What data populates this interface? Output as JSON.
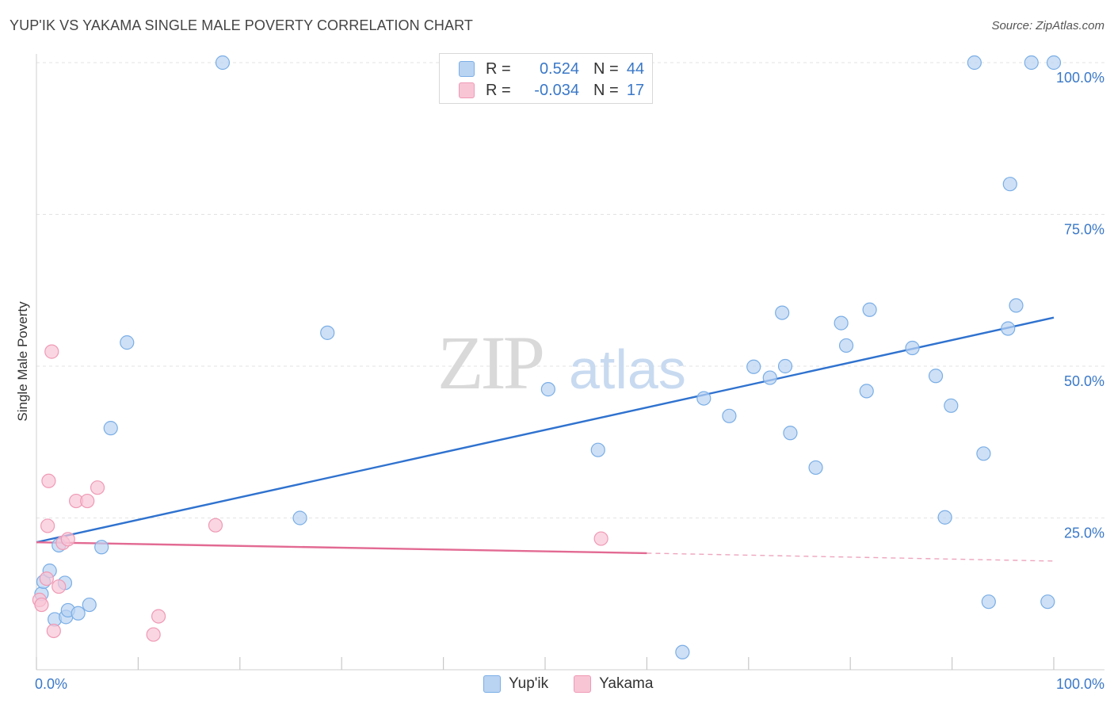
{
  "title": "YUP'IK VS YAKAMA SINGLE MALE POVERTY CORRELATION CHART",
  "source": "Source: ZipAtlas.com",
  "watermark": {
    "zip": "ZIP",
    "atlas": "atlas"
  },
  "legend": {
    "rows": [
      {
        "r_label": "R =",
        "r_value": "0.524",
        "n_label": "N =",
        "n_value": "44"
      },
      {
        "r_label": "R =",
        "r_value": "-0.034",
        "n_label": "N =",
        "n_value": "17"
      }
    ]
  },
  "colors": {
    "yupik_fill": "#b9d3f2",
    "yupik_stroke": "#7aaee6",
    "yupik_line": "#2f72cf",
    "yakama_fill": "#f8c5d5",
    "yakama_stroke": "#ef9ab5",
    "yakama_line": "#e26a93",
    "tick_label": "#3a78c8",
    "grid": "#e3e3e3"
  },
  "chart_data": {
    "type": "scatter",
    "title": "YUP'IK VS YAKAMA SINGLE MALE POVERTY CORRELATION CHART",
    "xlabel": "",
    "ylabel": "Single Male Poverty",
    "xlim": [
      0,
      100
    ],
    "ylim": [
      0,
      100
    ],
    "x_tick_labels": [
      "0.0%",
      "100.0%"
    ],
    "y_ticks": [
      25,
      50,
      75,
      100
    ],
    "y_tick_labels": [
      "25.0%",
      "50.0%",
      "75.0%",
      "100.0%"
    ],
    "series": [
      {
        "name": "Yup'ik",
        "r": 0.524,
        "n": 44,
        "trend": {
          "x": [
            0,
            100
          ],
          "y": [
            21,
            58
          ]
        },
        "points": [
          [
            0.5,
            12.5
          ],
          [
            0.7,
            14.5
          ],
          [
            1.3,
            16.3
          ],
          [
            1.8,
            8.3
          ],
          [
            2.2,
            20.5
          ],
          [
            2.8,
            14.3
          ],
          [
            2.9,
            8.7
          ],
          [
            3.1,
            9.8
          ],
          [
            4.1,
            9.3
          ],
          [
            5.2,
            10.7
          ],
          [
            6.4,
            20.2
          ],
          [
            7.3,
            39.8
          ],
          [
            8.9,
            53.9
          ],
          [
            18.3,
            100
          ],
          [
            25.9,
            25
          ],
          [
            28.6,
            55.5
          ],
          [
            50.3,
            46.2
          ],
          [
            55.2,
            36.2
          ],
          [
            63.5,
            2.9
          ],
          [
            65.6,
            44.7
          ],
          [
            68.1,
            41.8
          ],
          [
            70.5,
            49.9
          ],
          [
            72.1,
            48.1
          ],
          [
            73.3,
            58.8
          ],
          [
            73.6,
            50
          ],
          [
            74.1,
            39
          ],
          [
            76.6,
            33.3
          ],
          [
            79.1,
            57.1
          ],
          [
            79.6,
            53.4
          ],
          [
            81.6,
            45.9
          ],
          [
            81.9,
            59.3
          ],
          [
            86.1,
            53
          ],
          [
            89.9,
            43.5
          ],
          [
            88.4,
            48.4
          ],
          [
            89.3,
            25.1
          ],
          [
            92.2,
            100
          ],
          [
            93.1,
            35.6
          ],
          [
            93.6,
            11.2
          ],
          [
            95.7,
            80
          ],
          [
            95.5,
            56.2
          ],
          [
            96.3,
            60
          ],
          [
            97.8,
            100
          ],
          [
            99.4,
            11.2
          ],
          [
            100,
            100
          ]
        ]
      },
      {
        "name": "Yakama",
        "r": -0.034,
        "n": 17,
        "trend": {
          "x": [
            0,
            60
          ],
          "y": [
            21,
            19.2
          ]
        },
        "trend_dashed": {
          "x": [
            60,
            100
          ],
          "y": [
            19.2,
            17.9
          ]
        },
        "points": [
          [
            0.3,
            11.5
          ],
          [
            0.5,
            10.7
          ],
          [
            1,
            15
          ],
          [
            1.1,
            23.7
          ],
          [
            1.2,
            31.1
          ],
          [
            1.5,
            52.4
          ],
          [
            1.7,
            6.4
          ],
          [
            2.2,
            13.7
          ],
          [
            2.6,
            20.9
          ],
          [
            3.1,
            21.5
          ],
          [
            3.9,
            27.8
          ],
          [
            5.0,
            27.8
          ],
          [
            6.0,
            30
          ],
          [
            11.5,
            5.8
          ],
          [
            12.0,
            8.8
          ],
          [
            17.6,
            23.8
          ],
          [
            55.5,
            21.6
          ]
        ]
      }
    ]
  }
}
